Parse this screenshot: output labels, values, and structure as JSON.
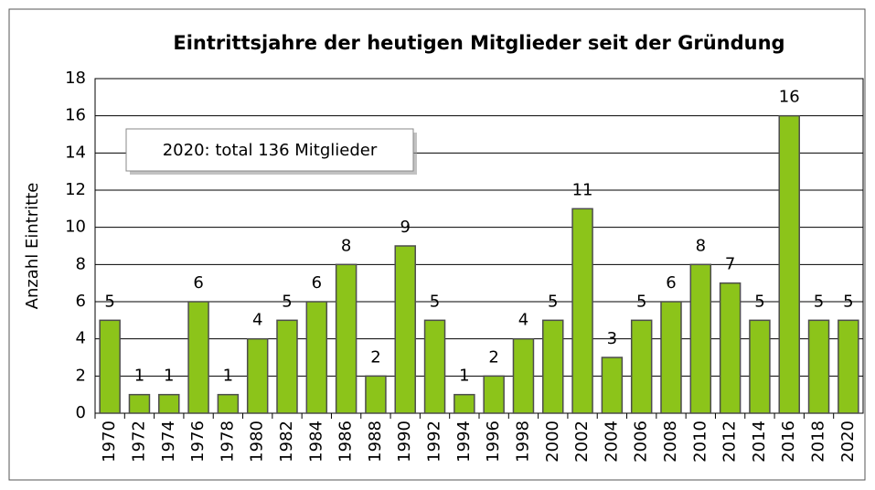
{
  "chart_data": {
    "type": "bar",
    "title": "Eintrittsjahre der heutigen Mitglieder seit der Gründung",
    "ylabel": "Anzahl Eintritte",
    "annotation": "2020: total 136 Mitglieder",
    "categories": [
      "1970",
      "1972",
      "1974",
      "1976",
      "1978",
      "1980",
      "1982",
      "1984",
      "1986",
      "1988",
      "1990",
      "1992",
      "1994",
      "1996",
      "1998",
      "2000",
      "2002",
      "2004",
      "2006",
      "2008",
      "2010",
      "2012",
      "2014",
      "2016",
      "2018",
      "2020"
    ],
    "values": [
      5,
      1,
      1,
      6,
      1,
      4,
      5,
      6,
      8,
      2,
      9,
      5,
      1,
      2,
      4,
      5,
      11,
      3,
      5,
      6,
      8,
      7,
      5,
      16,
      5,
      5
    ],
    "color": "#8cc41a",
    "ylim": [
      0,
      18
    ],
    "yticks": [
      0,
      2,
      4,
      6,
      8,
      10,
      12,
      14,
      16,
      18
    ],
    "grid": true
  }
}
